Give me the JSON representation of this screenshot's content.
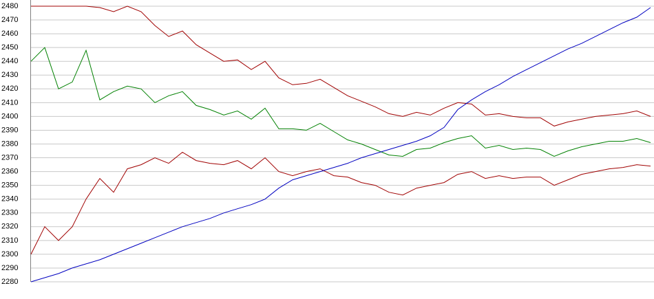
{
  "chart_data": {
    "type": "line",
    "ylim": [
      2280,
      2480
    ],
    "yticks": [
      2280,
      2290,
      2300,
      2310,
      2320,
      2330,
      2340,
      2350,
      2360,
      2370,
      2380,
      2390,
      2400,
      2410,
      2420,
      2430,
      2440,
      2450,
      2460,
      2470,
      2480
    ],
    "grid": true,
    "series": [
      {
        "color": "#a00000",
        "values": [
          2480,
          2480,
          2480,
          2480,
          2480,
          2479,
          2476,
          2480,
          2476,
          2466,
          2458,
          2462,
          2452,
          2446,
          2440,
          2441,
          2434,
          2440,
          2428,
          2423,
          2424,
          2427,
          2421,
          2415,
          2411,
          2407,
          2402,
          2400,
          2403,
          2401,
          2406,
          2410,
          2409,
          2401,
          2402,
          2400,
          2399,
          2399,
          2393,
          2396,
          2398,
          2400,
          2401,
          2402,
          2404,
          2400
        ]
      },
      {
        "color": "#008000",
        "values": [
          2440,
          2450,
          2420,
          2425,
          2448,
          2412,
          2418,
          2422,
          2420,
          2410,
          2415,
          2418,
          2408,
          2405,
          2401,
          2404,
          2398,
          2406,
          2391,
          2391,
          2390,
          2395,
          2389,
          2383,
          2380,
          2376,
          2372,
          2371,
          2376,
          2377,
          2381,
          2384,
          2386,
          2377,
          2379,
          2376,
          2377,
          2376,
          2371,
          2375,
          2378,
          2380,
          2382,
          2382,
          2384,
          2381
        ]
      },
      {
        "color": "#a00000",
        "values": [
          2300,
          2320,
          2310,
          2320,
          2340,
          2355,
          2345,
          2362,
          2365,
          2370,
          2366,
          2374,
          2368,
          2366,
          2365,
          2368,
          2362,
          2370,
          2360,
          2357,
          2360,
          2362,
          2357,
          2356,
          2352,
          2350,
          2345,
          2343,
          2348,
          2350,
          2352,
          2358,
          2360,
          2355,
          2357,
          2355,
          2356,
          2356,
          2350,
          2354,
          2358,
          2360,
          2362,
          2363,
          2365,
          2364
        ]
      },
      {
        "color": "#0000c0",
        "values": [
          2280,
          2283,
          2286,
          2290,
          2293,
          2296,
          2300,
          2304,
          2308,
          2312,
          2316,
          2320,
          2323,
          2326,
          2330,
          2333,
          2336,
          2340,
          2348,
          2354,
          2357,
          2360,
          2363,
          2366,
          2370,
          2373,
          2376,
          2379,
          2382,
          2386,
          2392,
          2405,
          2412,
          2418,
          2423,
          2429,
          2434,
          2439,
          2444,
          2449,
          2453,
          2458,
          2463,
          2468,
          2472,
          2479
        ]
      }
    ]
  }
}
